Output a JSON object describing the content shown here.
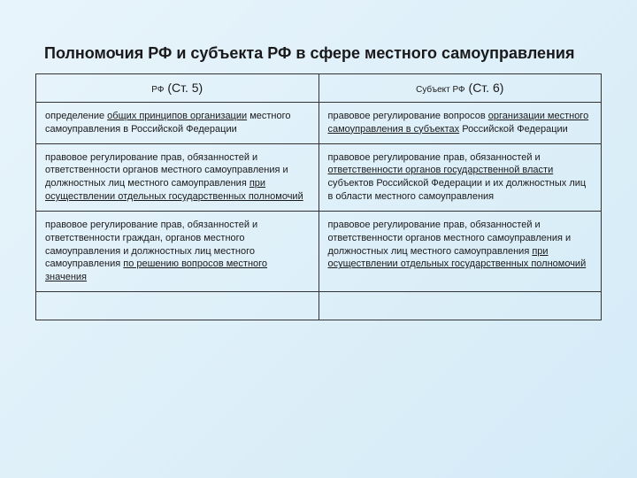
{
  "title": "Полномочия РФ и субъекта РФ в сфере местного самоуправления",
  "headers": {
    "left_small": "РФ",
    "left_big": " (Ст. 5)",
    "right_small": "Субъект РФ",
    "right_big": " (Ст. 6)"
  },
  "rows": [
    {
      "left_pre": "определение ",
      "left_u": "общих принципов организации",
      "left_post": " местного самоуправления в Российской Федерации",
      "right_pre": "правовое регулирование вопросов ",
      "right_u": "организации местного самоуправления в субъектах",
      "right_post": " Российской Федерации"
    },
    {
      "left_pre": "правовое регулирование прав, обязанностей и ответственности органов местного самоуправления и должностных лиц местного самоуправления ",
      "left_u": "при осуществлении отдельных государственных полномочий",
      "left_post": "",
      "right_pre": "правовое регулирование прав, обязанностей и ",
      "right_u": "ответственности органов государственной власти",
      "right_post": " субъектов Российской Федерации и их должностных лиц в области местного самоуправления"
    },
    {
      "left_pre": "правовое регулирование прав, обязанностей и ответственности граждан, органов местного самоуправления и должностных лиц местного самоуправления ",
      "left_u": "по решению вопросов местного значения",
      "left_post": "",
      "right_pre": "правовое регулирование прав, обязанностей и ответственности органов местного самоуправления и должностных лиц местного самоуправления ",
      "right_u": "при осуществлении отдельных государственных полномочий",
      "right_post": ""
    }
  ]
}
